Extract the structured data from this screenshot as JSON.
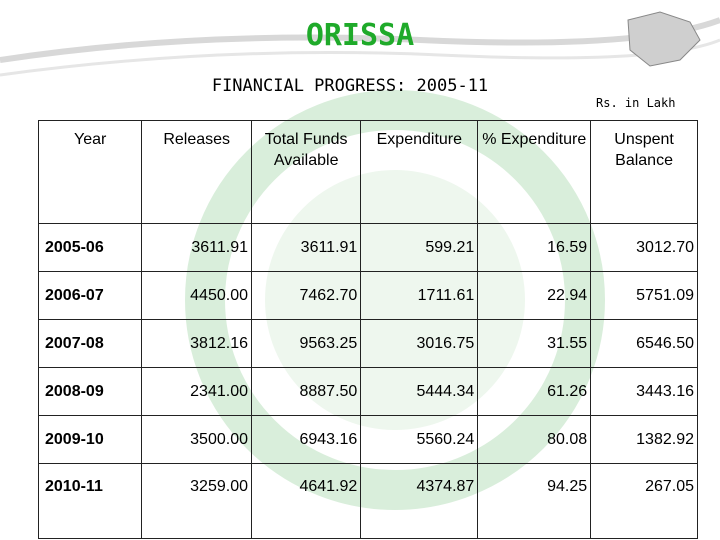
{
  "header": {
    "title": "ORISSA",
    "subtitle": "FINANCIAL PROGRESS: 2005-11",
    "unit_note": "Rs. in Lakh"
  },
  "table": {
    "columns": [
      "Year",
      "Releases",
      "Total Funds Available",
      "Expenditure",
      "% Expenditure",
      "Unspent Balance"
    ],
    "rows": [
      [
        "2005-06",
        "3611.91",
        "3611.91",
        "599.21",
        "16.59",
        "3012.70"
      ],
      [
        "2006-07",
        "4450.00",
        "7462.70",
        "1711.61",
        "22.94",
        "5751.09"
      ],
      [
        "2007-08",
        "3812.16",
        "9563.25",
        "3016.75",
        "31.55",
        "6546.50"
      ],
      [
        "2008-09",
        "2341.00",
        "8887.50",
        "5444.34",
        "61.26",
        "3443.16"
      ],
      [
        "2009-10",
        "3500.00",
        "6943.16",
        "5560.24",
        "80.08",
        "1382.92"
      ],
      [
        "2010-11",
        "3259.00",
        "4641.92",
        "4374.87",
        "94.25",
        "267.05"
      ]
    ]
  }
}
